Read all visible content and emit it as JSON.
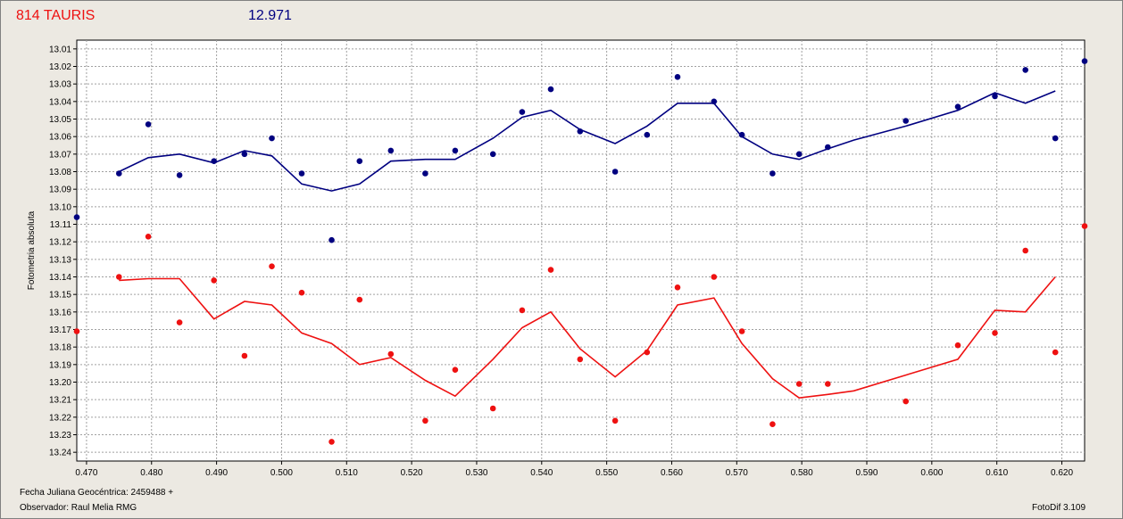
{
  "header": {
    "star_name": "814 TAURIS",
    "value": "12.971",
    "star_color": "#ee1111",
    "value_color": "#000080"
  },
  "footer": {
    "date_label": "Fecha Juliana Geocéntrica: 2459488 +",
    "observer_label": "Observador: Raul Melia RMG",
    "software": "FotoDif 3.109"
  },
  "chart_data": {
    "type": "scatter",
    "title": "",
    "xlabel": "",
    "ylabel": "Fotometria absoluta",
    "xlim": [
      0.4685,
      0.6235
    ],
    "ylim": [
      13.245,
      13.005
    ],
    "y_inverted": true,
    "grid": true,
    "x_ticks": [
      "0.470",
      "0.480",
      "0.490",
      "0.500",
      "0.510",
      "0.520",
      "0.530",
      "0.540",
      "0.550",
      "0.560",
      "0.570",
      "0.580",
      "0.590",
      "0.600",
      "0.610",
      "0.620"
    ],
    "y_ticks": [
      "13.01",
      "13.02",
      "13.03",
      "13.04",
      "13.05",
      "13.06",
      "13.07",
      "13.08",
      "13.09",
      "13.10",
      "13.11",
      "13.12",
      "13.13",
      "13.14",
      "13.15",
      "13.16",
      "13.17",
      "13.18",
      "13.19",
      "13.20",
      "13.21",
      "13.22",
      "13.23",
      "13.24"
    ],
    "series": [
      {
        "color": "#000080",
        "points": [
          [
            0.4685,
            13.106
          ],
          [
            0.475,
            13.081
          ],
          [
            0.4795,
            13.053
          ],
          [
            0.4843,
            13.082
          ],
          [
            0.4896,
            13.074
          ],
          [
            0.4943,
            13.07
          ],
          [
            0.4985,
            13.061
          ],
          [
            0.5031,
            13.081
          ],
          [
            0.5077,
            13.119
          ],
          [
            0.512,
            13.074
          ],
          [
            0.5168,
            13.068
          ],
          [
            0.5221,
            13.081
          ],
          [
            0.5267,
            13.068
          ],
          [
            0.5325,
            13.07
          ],
          [
            0.537,
            13.046
          ],
          [
            0.5414,
            13.033
          ],
          [
            0.5459,
            13.057
          ],
          [
            0.5513,
            13.08
          ],
          [
            0.5562,
            13.059
          ],
          [
            0.5609,
            13.026
          ],
          [
            0.5665,
            13.04
          ],
          [
            0.5708,
            13.059
          ],
          [
            0.5755,
            13.081
          ],
          [
            0.5796,
            13.07
          ],
          [
            0.584,
            13.066
          ],
          [
            0.596,
            13.051
          ],
          [
            0.604,
            13.043
          ],
          [
            0.6097,
            13.037
          ],
          [
            0.6144,
            13.022
          ],
          [
            0.619,
            13.061
          ],
          [
            0.6235,
            13.017
          ]
        ],
        "line": [
          [
            0.475,
            13.08
          ],
          [
            0.4795,
            13.072
          ],
          [
            0.4843,
            13.07
          ],
          [
            0.4896,
            13.075
          ],
          [
            0.4943,
            13.068
          ],
          [
            0.4985,
            13.071
          ],
          [
            0.5031,
            13.087
          ],
          [
            0.5077,
            13.091
          ],
          [
            0.512,
            13.087
          ],
          [
            0.5168,
            13.074
          ],
          [
            0.5221,
            13.073
          ],
          [
            0.5267,
            13.073
          ],
          [
            0.5325,
            13.061
          ],
          [
            0.537,
            13.049
          ],
          [
            0.5414,
            13.045
          ],
          [
            0.5459,
            13.056
          ],
          [
            0.5513,
            13.064
          ],
          [
            0.5562,
            13.054
          ],
          [
            0.5609,
            13.041
          ],
          [
            0.5665,
            13.041
          ],
          [
            0.5708,
            13.06
          ],
          [
            0.5755,
            13.07
          ],
          [
            0.5796,
            13.073
          ],
          [
            0.584,
            13.067
          ],
          [
            0.588,
            13.062
          ],
          [
            0.596,
            13.054
          ],
          [
            0.604,
            13.045
          ],
          [
            0.6097,
            13.035
          ],
          [
            0.6144,
            13.041
          ],
          [
            0.619,
            13.034
          ]
        ]
      },
      {
        "color": "#ee1111",
        "points": [
          [
            0.4685,
            13.171
          ],
          [
            0.475,
            13.14
          ],
          [
            0.4795,
            13.117
          ],
          [
            0.4843,
            13.166
          ],
          [
            0.4896,
            13.142
          ],
          [
            0.4943,
            13.185
          ],
          [
            0.4985,
            13.134
          ],
          [
            0.5031,
            13.149
          ],
          [
            0.5077,
            13.234
          ],
          [
            0.512,
            13.153
          ],
          [
            0.5168,
            13.184
          ],
          [
            0.5221,
            13.222
          ],
          [
            0.5267,
            13.193
          ],
          [
            0.5325,
            13.215
          ],
          [
            0.537,
            13.159
          ],
          [
            0.5414,
            13.136
          ],
          [
            0.5459,
            13.187
          ],
          [
            0.5513,
            13.222
          ],
          [
            0.5562,
            13.183
          ],
          [
            0.5609,
            13.146
          ],
          [
            0.5665,
            13.14
          ],
          [
            0.5708,
            13.171
          ],
          [
            0.5755,
            13.224
          ],
          [
            0.5796,
            13.201
          ],
          [
            0.584,
            13.201
          ],
          [
            0.596,
            13.211
          ],
          [
            0.604,
            13.179
          ],
          [
            0.6097,
            13.172
          ],
          [
            0.6144,
            13.125
          ],
          [
            0.619,
            13.183
          ],
          [
            0.6235,
            13.111
          ]
        ],
        "line": [
          [
            0.475,
            13.142
          ],
          [
            0.4795,
            13.141
          ],
          [
            0.4843,
            13.141
          ],
          [
            0.4896,
            13.164
          ],
          [
            0.4943,
            13.154
          ],
          [
            0.4985,
            13.156
          ],
          [
            0.5031,
            13.172
          ],
          [
            0.5077,
            13.178
          ],
          [
            0.512,
            13.19
          ],
          [
            0.5168,
            13.186
          ],
          [
            0.5221,
            13.199
          ],
          [
            0.5267,
            13.208
          ],
          [
            0.5325,
            13.187
          ],
          [
            0.537,
            13.169
          ],
          [
            0.5414,
            13.16
          ],
          [
            0.5459,
            13.181
          ],
          [
            0.5513,
            13.197
          ],
          [
            0.5562,
            13.182
          ],
          [
            0.5609,
            13.156
          ],
          [
            0.5665,
            13.152
          ],
          [
            0.5708,
            13.178
          ],
          [
            0.5755,
            13.198
          ],
          [
            0.5796,
            13.209
          ],
          [
            0.584,
            13.207
          ],
          [
            0.588,
            13.205
          ],
          [
            0.596,
            13.196
          ],
          [
            0.604,
            13.187
          ],
          [
            0.6097,
            13.159
          ],
          [
            0.6144,
            13.16
          ],
          [
            0.619,
            13.14
          ]
        ]
      }
    ]
  }
}
